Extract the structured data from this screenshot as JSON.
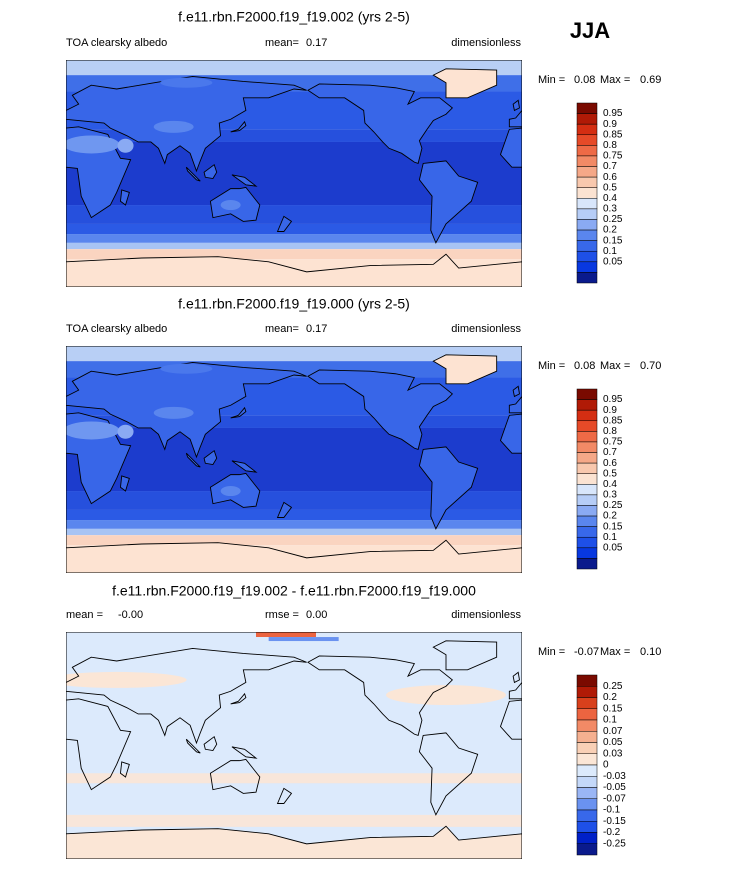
{
  "header": {
    "season": "JJA"
  },
  "panels": [
    {
      "title": "f.e11.rbn.F2000.f19_f19.002 (yrs 2-5)",
      "left_label": "TOA clearsky albedo",
      "center_label": "mean=",
      "center_value": "0.17",
      "right": "dimensionless",
      "min_label": "Min =",
      "min": "0.08",
      "max_label": "Max =",
      "max": "0.69",
      "colorbar": {
        "labels": [
          "0.95",
          "0.9",
          "0.85",
          "0.8",
          "0.75",
          "0.7",
          "0.6",
          "0.5",
          "0.4",
          "0.3",
          "0.25",
          "0.2",
          "0.15",
          "0.1",
          "0.05"
        ],
        "colors": [
          "#7a0a00",
          "#b01a06",
          "#d42e12",
          "#e64a28",
          "#ee6a46",
          "#f28a66",
          "#f5a888",
          "#f8c8ae",
          "#fbe3d2",
          "#d8e6fb",
          "#b6cdf7",
          "#8aaaf3",
          "#5a86ee",
          "#3868ea",
          "#1e50e8",
          "#0838e0",
          "#0a1a8c"
        ]
      }
    },
    {
      "title": "f.e11.rbn.F2000.f19_f19.000 (yrs 2-5)",
      "left_label": "TOA clearsky albedo",
      "center_label": "mean=",
      "center_value": "0.17",
      "right": "dimensionless",
      "min_label": "Min =",
      "min": "0.08",
      "max_label": "Max =",
      "max": "0.70",
      "colorbar": {
        "labels": [
          "0.95",
          "0.9",
          "0.85",
          "0.8",
          "0.75",
          "0.7",
          "0.6",
          "0.5",
          "0.4",
          "0.3",
          "0.25",
          "0.2",
          "0.15",
          "0.1",
          "0.05"
        ],
        "colors": [
          "#7a0a00",
          "#b01a06",
          "#d42e12",
          "#e64a28",
          "#ee6a46",
          "#f28a66",
          "#f5a888",
          "#f8c8ae",
          "#fbe3d2",
          "#d8e6fb",
          "#b6cdf7",
          "#8aaaf3",
          "#5a86ee",
          "#3868ea",
          "#1e50e8",
          "#0838e0",
          "#0a1a8c"
        ]
      }
    },
    {
      "title": "f.e11.rbn.F2000.f19_f19.002 - f.e11.rbn.F2000.f19_f19.000",
      "left_label": "mean =",
      "left_value": "-0.00",
      "center_label": "rmse =",
      "center_value": "0.00",
      "right": "dimensionless",
      "min_label": "Min =",
      "min": "-0.07",
      "max_label": "Max =",
      "max": "0.10",
      "colorbar": {
        "labels": [
          "0.25",
          "0.2",
          "0.15",
          "0.1",
          "0.07",
          "0.05",
          "0.03",
          "0",
          "-0.03",
          "-0.05",
          "-0.07",
          "-0.1",
          "-0.15",
          "-0.2",
          "-0.25"
        ],
        "colors": [
          "#7a0a00",
          "#b01a06",
          "#d8401c",
          "#ec6440",
          "#f28a66",
          "#f5b090",
          "#f9d0b6",
          "#fbe6d6",
          "#dceafc",
          "#c4d8f9",
          "#9ab6f5",
          "#6a92f0",
          "#3868ea",
          "#1e50e8",
          "#0020c8",
          "#0a1a8c"
        ]
      }
    }
  ]
}
